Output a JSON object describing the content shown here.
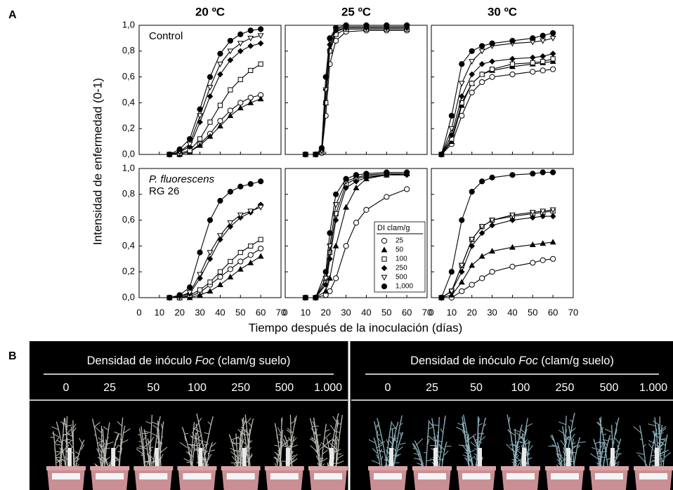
{
  "figure": {
    "panel_a": "A",
    "panel_b": "B",
    "ylabel": "Intensidad de enfermedad (0-1)",
    "xlabel": "Tiempo después de la inoculación (días)"
  },
  "chart_data": [
    {
      "type": "line",
      "title": "20 ºC",
      "annotations": [
        "Control"
      ],
      "annotation_style": [
        "normal"
      ],
      "xlim": [
        0,
        70
      ],
      "xticks": [
        0,
        10,
        20,
        30,
        40,
        50,
        60,
        70
      ],
      "ylim": [
        0,
        1
      ],
      "yticks": [
        {
          "value": 0,
          "label": "0,0"
        },
        {
          "value": 0.2,
          "label": "0,2"
        },
        {
          "value": 0.4,
          "label": "0,4"
        },
        {
          "value": 0.6,
          "label": "0,6"
        },
        {
          "value": 0.8,
          "label": "0,8"
        },
        {
          "value": 1,
          "label": "1,0"
        }
      ],
      "x": [
        15,
        20,
        25,
        30,
        35,
        40,
        45,
        50,
        55,
        60
      ],
      "series": [
        {
          "name": "25",
          "color": "#000000",
          "marker": "circle-open",
          "values": [
            0,
            0,
            0.02,
            0.08,
            0.16,
            0.26,
            0.34,
            0.4,
            0.44,
            0.46
          ]
        },
        {
          "name": "50",
          "color": "#000000",
          "marker": "triangle",
          "values": [
            0,
            0,
            0.02,
            0.07,
            0.14,
            0.22,
            0.3,
            0.36,
            0.4,
            0.43
          ]
        },
        {
          "name": "100",
          "color": "#000000",
          "marker": "square-open",
          "values": [
            0,
            0.01,
            0.03,
            0.12,
            0.25,
            0.38,
            0.5,
            0.58,
            0.65,
            0.7
          ]
        },
        {
          "name": "250",
          "color": "#000000",
          "marker": "diamond",
          "values": [
            0,
            0.02,
            0.06,
            0.25,
            0.45,
            0.62,
            0.73,
            0.8,
            0.84,
            0.86
          ]
        },
        {
          "name": "500",
          "color": "#000000",
          "marker": "triangle-down-open",
          "values": [
            0,
            0.02,
            0.08,
            0.3,
            0.52,
            0.7,
            0.8,
            0.86,
            0.9,
            0.92
          ]
        },
        {
          "name": "1,000",
          "color": "#000000",
          "marker": "circle",
          "values": [
            0,
            0.04,
            0.12,
            0.35,
            0.6,
            0.78,
            0.88,
            0.93,
            0.96,
            0.97
          ]
        }
      ]
    },
    {
      "type": "line",
      "title": "25 ºC",
      "xlim": [
        0,
        70
      ],
      "xticks": [
        0,
        10,
        20,
        30,
        40,
        50,
        60,
        70
      ],
      "ylim": [
        0,
        1
      ],
      "yticks": [
        0,
        0.2,
        0.4,
        0.6,
        0.8,
        1
      ],
      "x": [
        10,
        15,
        18,
        20,
        22,
        25,
        30,
        40,
        50,
        60
      ],
      "series": [
        {
          "name": "25",
          "color": "#000000",
          "marker": "circle-open",
          "values": [
            0,
            0,
            0.01,
            0.3,
            0.7,
            0.88,
            0.95,
            0.96,
            0.96,
            0.96
          ]
        },
        {
          "name": "50",
          "color": "#000000",
          "marker": "triangle",
          "values": [
            0,
            0,
            0.02,
            0.4,
            0.82,
            0.95,
            0.98,
            0.98,
            0.98,
            0.98
          ]
        },
        {
          "name": "100",
          "color": "#000000",
          "marker": "square-open",
          "values": [
            0,
            0,
            0.02,
            0.4,
            0.8,
            0.93,
            0.97,
            0.97,
            0.97,
            0.97
          ]
        },
        {
          "name": "250",
          "color": "#000000",
          "marker": "diamond",
          "values": [
            0,
            0,
            0.03,
            0.5,
            0.85,
            0.96,
            0.98,
            0.98,
            0.98,
            0.98
          ]
        },
        {
          "name": "500",
          "color": "#000000",
          "marker": "triangle-down-open",
          "values": [
            0,
            0,
            0.03,
            0.5,
            0.88,
            0.97,
            0.99,
            0.99,
            0.99,
            0.99
          ]
        },
        {
          "name": "1,000",
          "color": "#000000",
          "marker": "circle",
          "values": [
            0,
            0,
            0.05,
            0.6,
            0.9,
            0.98,
            1,
            1,
            1,
            1
          ]
        }
      ]
    },
    {
      "type": "line",
      "title": "30 ºC",
      "xlim": [
        0,
        70
      ],
      "xticks": [
        0,
        10,
        20,
        30,
        40,
        50,
        60,
        70
      ],
      "ylim": [
        0,
        1
      ],
      "yticks": [
        0,
        0.2,
        0.4,
        0.6,
        0.8,
        1
      ],
      "x": [
        5,
        10,
        15,
        20,
        25,
        30,
        40,
        50,
        55,
        60
      ],
      "series": [
        {
          "name": "25",
          "color": "#000000",
          "marker": "circle-open",
          "values": [
            0,
            0.08,
            0.3,
            0.48,
            0.56,
            0.6,
            0.62,
            0.64,
            0.65,
            0.66
          ]
        },
        {
          "name": "50",
          "color": "#000000",
          "marker": "triangle",
          "values": [
            0,
            0.1,
            0.38,
            0.55,
            0.62,
            0.65,
            0.68,
            0.7,
            0.71,
            0.72
          ]
        },
        {
          "name": "100",
          "color": "#000000",
          "marker": "square-open",
          "values": [
            0,
            0.12,
            0.4,
            0.55,
            0.62,
            0.66,
            0.7,
            0.71,
            0.72,
            0.74
          ]
        },
        {
          "name": "250",
          "color": "#000000",
          "marker": "diamond",
          "values": [
            0,
            0.15,
            0.45,
            0.62,
            0.7,
            0.72,
            0.74,
            0.75,
            0.76,
            0.78
          ]
        },
        {
          "name": "500",
          "color": "#000000",
          "marker": "triangle-down-open",
          "values": [
            0,
            0.2,
            0.55,
            0.72,
            0.8,
            0.84,
            0.86,
            0.87,
            0.88,
            0.9
          ]
        },
        {
          "name": "1,000",
          "color": "#000000",
          "marker": "circle",
          "values": [
            0,
            0.3,
            0.7,
            0.8,
            0.84,
            0.86,
            0.88,
            0.9,
            0.92,
            0.94
          ]
        }
      ]
    },
    {
      "type": "line",
      "annotations": [
        "P. fluorescens",
        "RG 26"
      ],
      "annotation_style": [
        "italic",
        "normal"
      ],
      "xlim": [
        0,
        70
      ],
      "xticks": [
        0,
        10,
        20,
        30,
        40,
        50,
        60,
        70
      ],
      "ylim": [
        0,
        1
      ],
      "yticks": [
        {
          "value": 0,
          "label": "0,0"
        },
        {
          "value": 0.2,
          "label": "0,2"
        },
        {
          "value": 0.4,
          "label": "0,4"
        },
        {
          "value": 0.6,
          "label": "0,6"
        },
        {
          "value": 0.8,
          "label": "0,8"
        },
        {
          "value": 1,
          "label": "1,0"
        }
      ],
      "x": [
        15,
        20,
        25,
        30,
        35,
        40,
        45,
        50,
        55,
        60
      ],
      "series": [
        {
          "name": "25",
          "color": "#000000",
          "marker": "circle-open",
          "values": [
            0,
            0,
            0.01,
            0.04,
            0.1,
            0.16,
            0.22,
            0.28,
            0.33,
            0.38
          ]
        },
        {
          "name": "50",
          "color": "#000000",
          "marker": "triangle",
          "values": [
            0,
            0,
            0,
            0.02,
            0.05,
            0.1,
            0.16,
            0.22,
            0.27,
            0.32
          ]
        },
        {
          "name": "100",
          "color": "#000000",
          "marker": "square-open",
          "values": [
            0,
            0,
            0.02,
            0.06,
            0.12,
            0.2,
            0.28,
            0.35,
            0.4,
            0.45
          ]
        },
        {
          "name": "250",
          "color": "#000000",
          "marker": "diamond",
          "values": [
            0,
            0.01,
            0.03,
            0.15,
            0.3,
            0.45,
            0.55,
            0.62,
            0.66,
            0.72
          ]
        },
        {
          "name": "500",
          "color": "#000000",
          "marker": "triangle-down-open",
          "values": [
            0,
            0.01,
            0.04,
            0.18,
            0.35,
            0.48,
            0.58,
            0.64,
            0.67,
            0.7
          ]
        },
        {
          "name": "1,000",
          "color": "#000000",
          "marker": "circle",
          "values": [
            0,
            0.02,
            0.08,
            0.35,
            0.6,
            0.75,
            0.82,
            0.86,
            0.88,
            0.9
          ]
        }
      ]
    },
    {
      "type": "line",
      "legend": "lower right",
      "legend_title": "DI clam/g",
      "xlim": [
        0,
        70
      ],
      "xticks": [
        0,
        10,
        20,
        30,
        40,
        50,
        60,
        70
      ],
      "ylim": [
        0,
        1
      ],
      "yticks": [
        0,
        0.2,
        0.4,
        0.6,
        0.8,
        1
      ],
      "x": [
        10,
        15,
        20,
        22,
        25,
        30,
        35,
        40,
        50,
        60
      ],
      "series": [
        {
          "name": "25",
          "color": "#000000",
          "marker": "circle-open",
          "values": [
            0,
            0,
            0.02,
            0.05,
            0.15,
            0.4,
            0.58,
            0.68,
            0.78,
            0.84
          ]
        },
        {
          "name": "50",
          "color": "#000000",
          "marker": "triangle",
          "values": [
            0,
            0,
            0.05,
            0.15,
            0.4,
            0.7,
            0.85,
            0.92,
            0.95,
            0.96
          ]
        },
        {
          "name": "100",
          "color": "#000000",
          "marker": "square-open",
          "values": [
            0,
            0,
            0.12,
            0.35,
            0.65,
            0.88,
            0.92,
            0.94,
            0.95,
            0.96
          ]
        },
        {
          "name": "250",
          "color": "#000000",
          "marker": "diamond",
          "values": [
            0,
            0,
            0.1,
            0.3,
            0.6,
            0.85,
            0.9,
            0.93,
            0.95,
            0.95
          ]
        },
        {
          "name": "500",
          "color": "#000000",
          "marker": "triangle-down-open",
          "values": [
            0,
            0,
            0.15,
            0.4,
            0.72,
            0.9,
            0.93,
            0.95,
            0.96,
            0.96
          ]
        },
        {
          "name": "1,000",
          "color": "#000000",
          "marker": "circle",
          "values": [
            0,
            0,
            0.2,
            0.5,
            0.8,
            0.92,
            0.95,
            0.96,
            0.97,
            0.97
          ]
        }
      ]
    },
    {
      "type": "line",
      "xlim": [
        0,
        70
      ],
      "xticks": [
        0,
        10,
        20,
        30,
        40,
        50,
        60,
        70
      ],
      "ylim": [
        0,
        1
      ],
      "yticks": [
        0,
        0.2,
        0.4,
        0.6,
        0.8,
        1
      ],
      "x": [
        5,
        10,
        15,
        20,
        25,
        30,
        40,
        50,
        55,
        60
      ],
      "series": [
        {
          "name": "25",
          "color": "#000000",
          "marker": "circle-open",
          "values": [
            0,
            0,
            0.05,
            0.1,
            0.15,
            0.2,
            0.24,
            0.27,
            0.29,
            0.3
          ]
        },
        {
          "name": "50",
          "color": "#000000",
          "marker": "triangle",
          "values": [
            0,
            0.02,
            0.12,
            0.25,
            0.32,
            0.36,
            0.39,
            0.41,
            0.42,
            0.43
          ]
        },
        {
          "name": "100",
          "color": "#000000",
          "marker": "square-open",
          "values": [
            0,
            0.05,
            0.25,
            0.45,
            0.55,
            0.6,
            0.63,
            0.65,
            0.66,
            0.67
          ]
        },
        {
          "name": "250",
          "color": "#000000",
          "marker": "diamond",
          "values": [
            0,
            0.05,
            0.2,
            0.4,
            0.5,
            0.56,
            0.6,
            0.62,
            0.63,
            0.63
          ]
        },
        {
          "name": "500",
          "color": "#000000",
          "marker": "triangle-down-open",
          "values": [
            0,
            0.05,
            0.25,
            0.45,
            0.55,
            0.6,
            0.64,
            0.66,
            0.67,
            0.68
          ]
        },
        {
          "name": "1,000",
          "color": "#000000",
          "marker": "circle",
          "values": [
            0,
            0.2,
            0.6,
            0.82,
            0.9,
            0.93,
            0.95,
            0.96,
            0.97,
            0.97
          ]
        }
      ]
    }
  ],
  "photo": {
    "panels": [
      {
        "title": [
          "Densidad de inóculo ",
          "Foc",
          " (clam/g suelo)"
        ],
        "doses": [
          "0",
          "25",
          "50",
          "100",
          "250",
          "500",
          "1.000"
        ],
        "plant_color": "#b9bcb4"
      },
      {
        "title": [
          "Densidad de inóculo ",
          "Foc",
          " (clam/g suelo)"
        ],
        "doses": [
          "0",
          "25",
          "50",
          "100",
          "250",
          "500",
          "1.000"
        ],
        "plant_color": "#8fb3bd"
      }
    ]
  }
}
